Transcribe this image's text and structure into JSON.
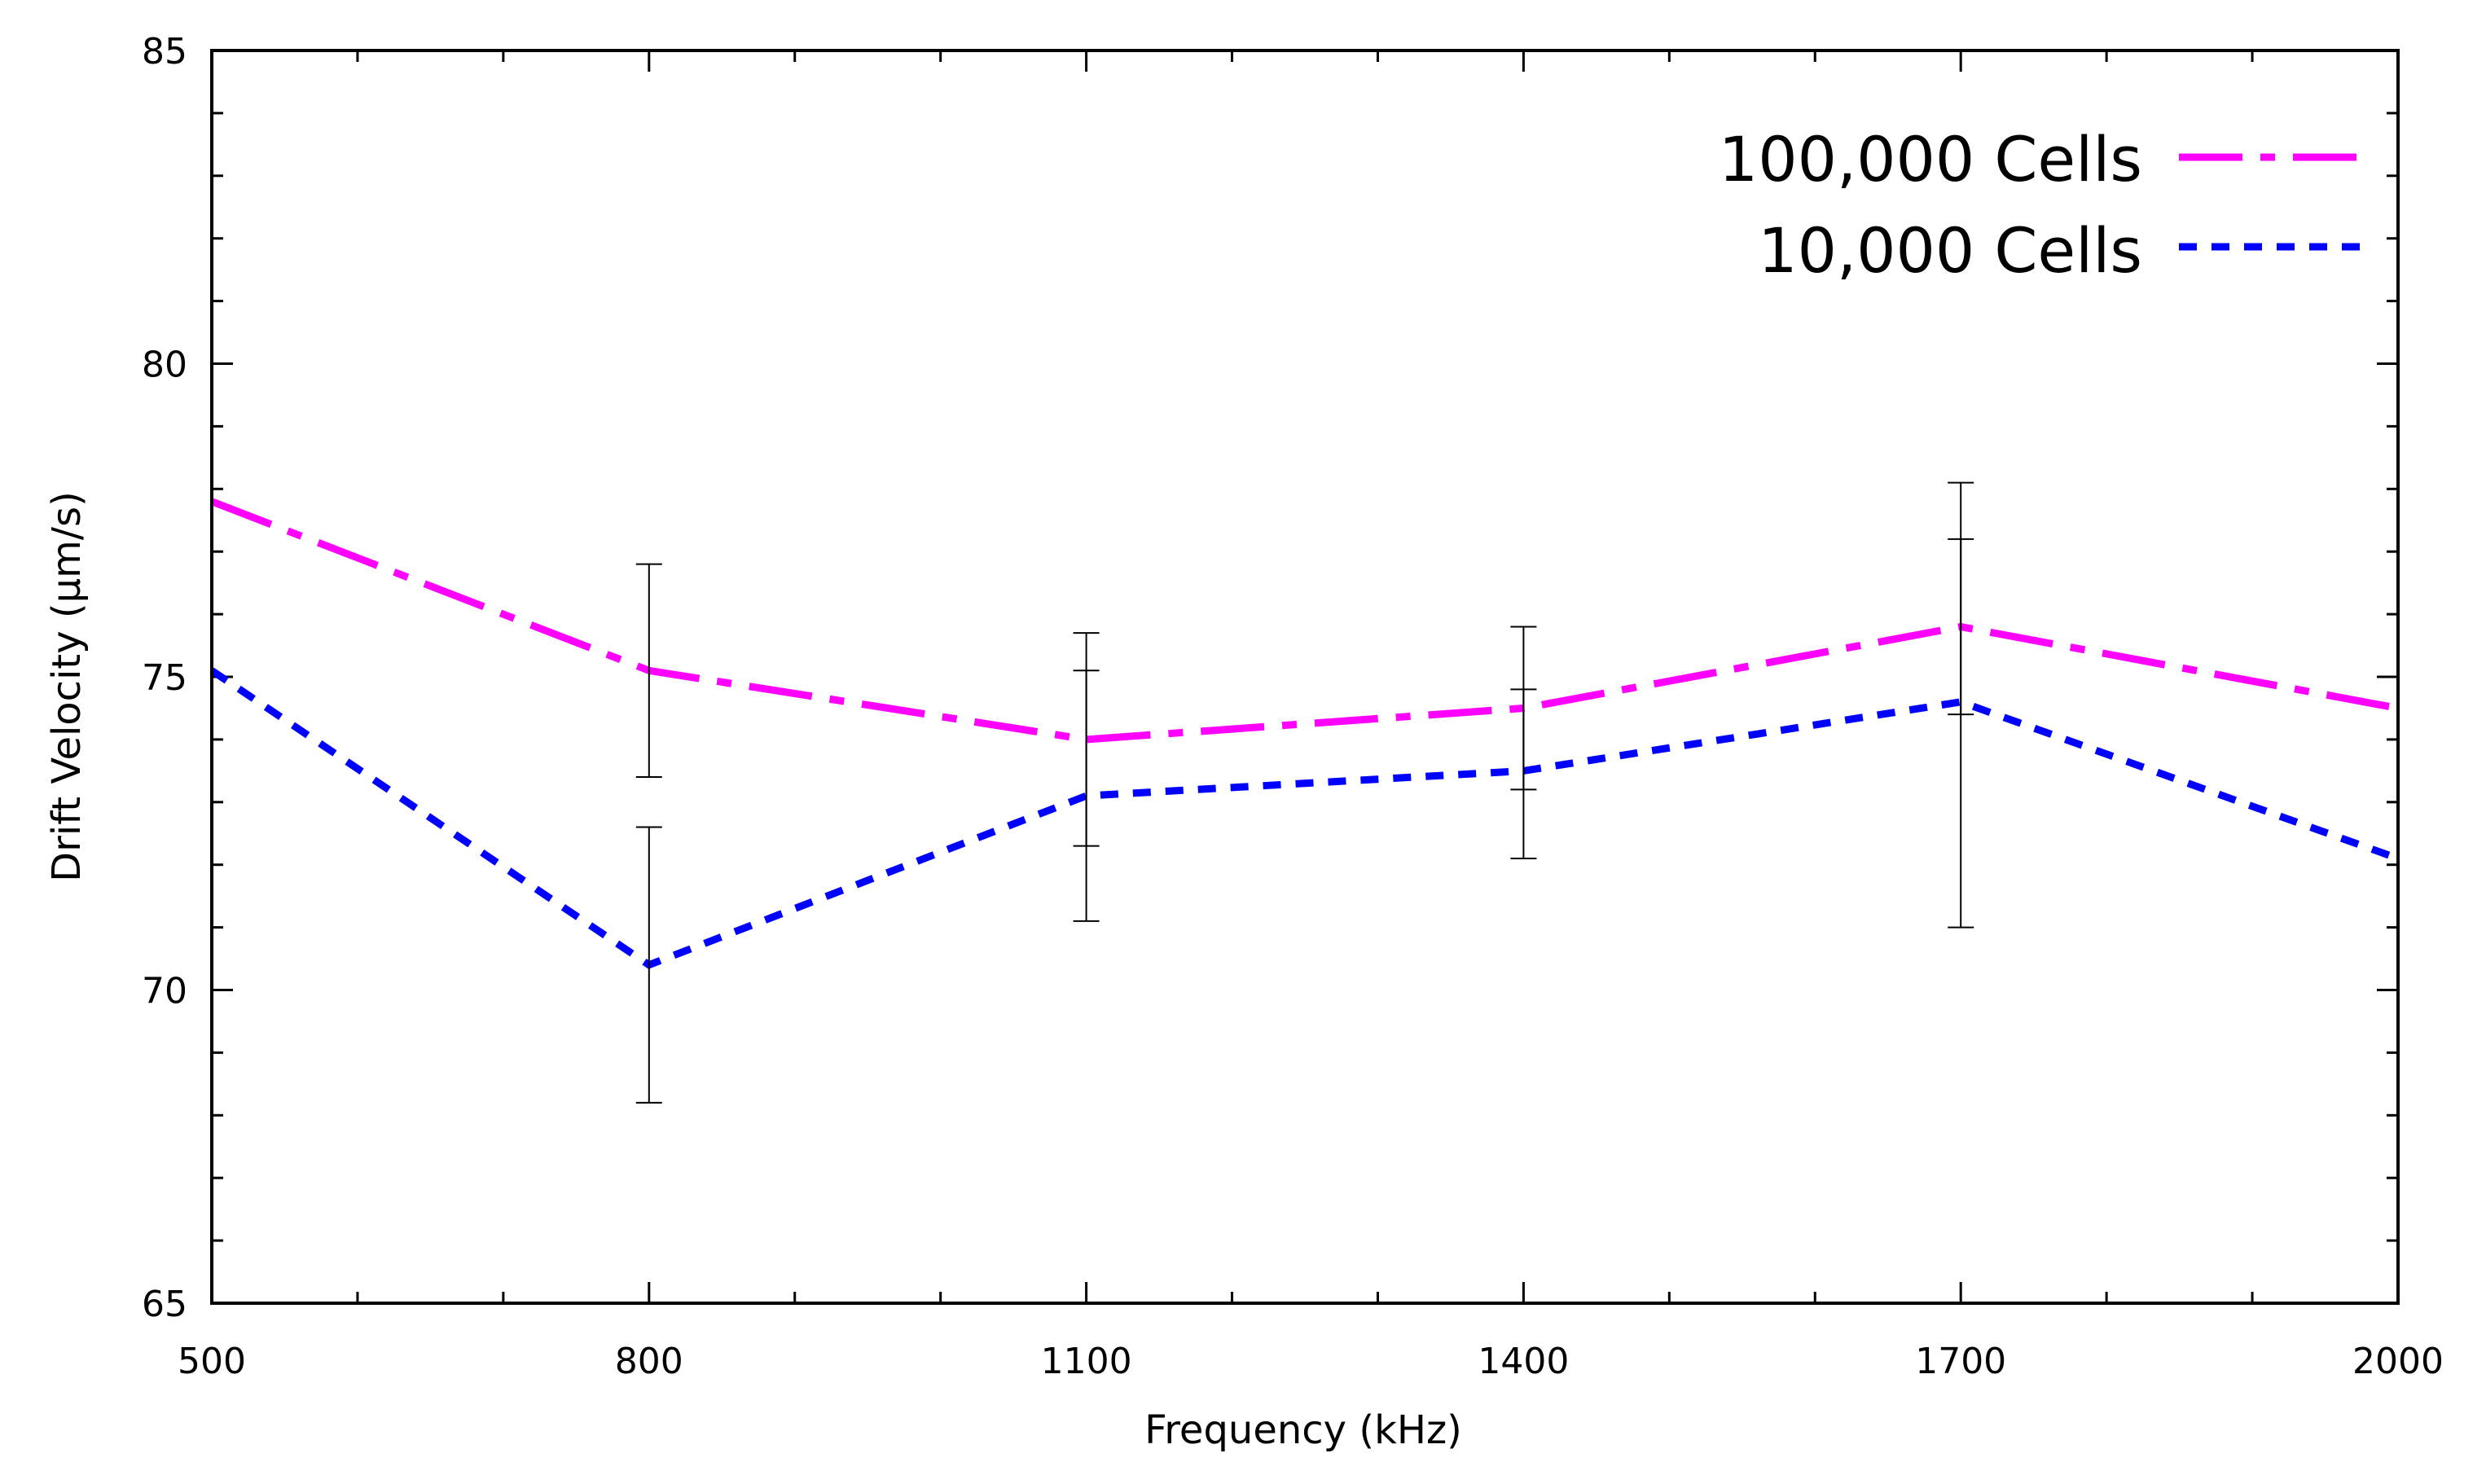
{
  "chart_data": {
    "type": "line",
    "title": "",
    "xlabel": "Frequency (kHz)",
    "ylabel": "Drift Velocity (μm/s)",
    "xlim": [
      500,
      2000
    ],
    "ylim": [
      65,
      85
    ],
    "x": [
      500,
      800,
      1100,
      1400,
      1700,
      2000
    ],
    "xticks": [
      500,
      800,
      1100,
      1400,
      1700,
      2000
    ],
    "xticks_minor": [
      600,
      700,
      900,
      1000,
      1200,
      1300,
      1500,
      1600,
      1800,
      1900
    ],
    "yticks": [
      65,
      70,
      75,
      80,
      85
    ],
    "yticks_minor": [
      66,
      67,
      68,
      69,
      71,
      72,
      73,
      74,
      76,
      77,
      78,
      79,
      81,
      82,
      83,
      84
    ],
    "grid": false,
    "legend_position": "top-right",
    "series": [
      {
        "name": "100,000 Cells",
        "color": "#ff00ff",
        "line_style": "dash-dot",
        "values": [
          77.8,
          75.1,
          74.0,
          74.5,
          75.8,
          74.5
        ],
        "error_bars": [
          null,
          [
            73.4,
            76.8
          ],
          [
            72.3,
            75.7
          ],
          [
            73.2,
            75.8
          ],
          [
            74.4,
            78.1
          ],
          null
        ]
      },
      {
        "name": "10,000 Cells",
        "color": "#0000ff",
        "line_style": "dotted",
        "values": [
          75.1,
          70.4,
          73.1,
          73.5,
          74.6,
          72.1
        ],
        "error_bars": [
          null,
          [
            68.2,
            72.6
          ],
          [
            71.1,
            75.1
          ],
          [
            72.1,
            74.8
          ],
          [
            71.0,
            77.2
          ],
          null
        ]
      }
    ]
  }
}
